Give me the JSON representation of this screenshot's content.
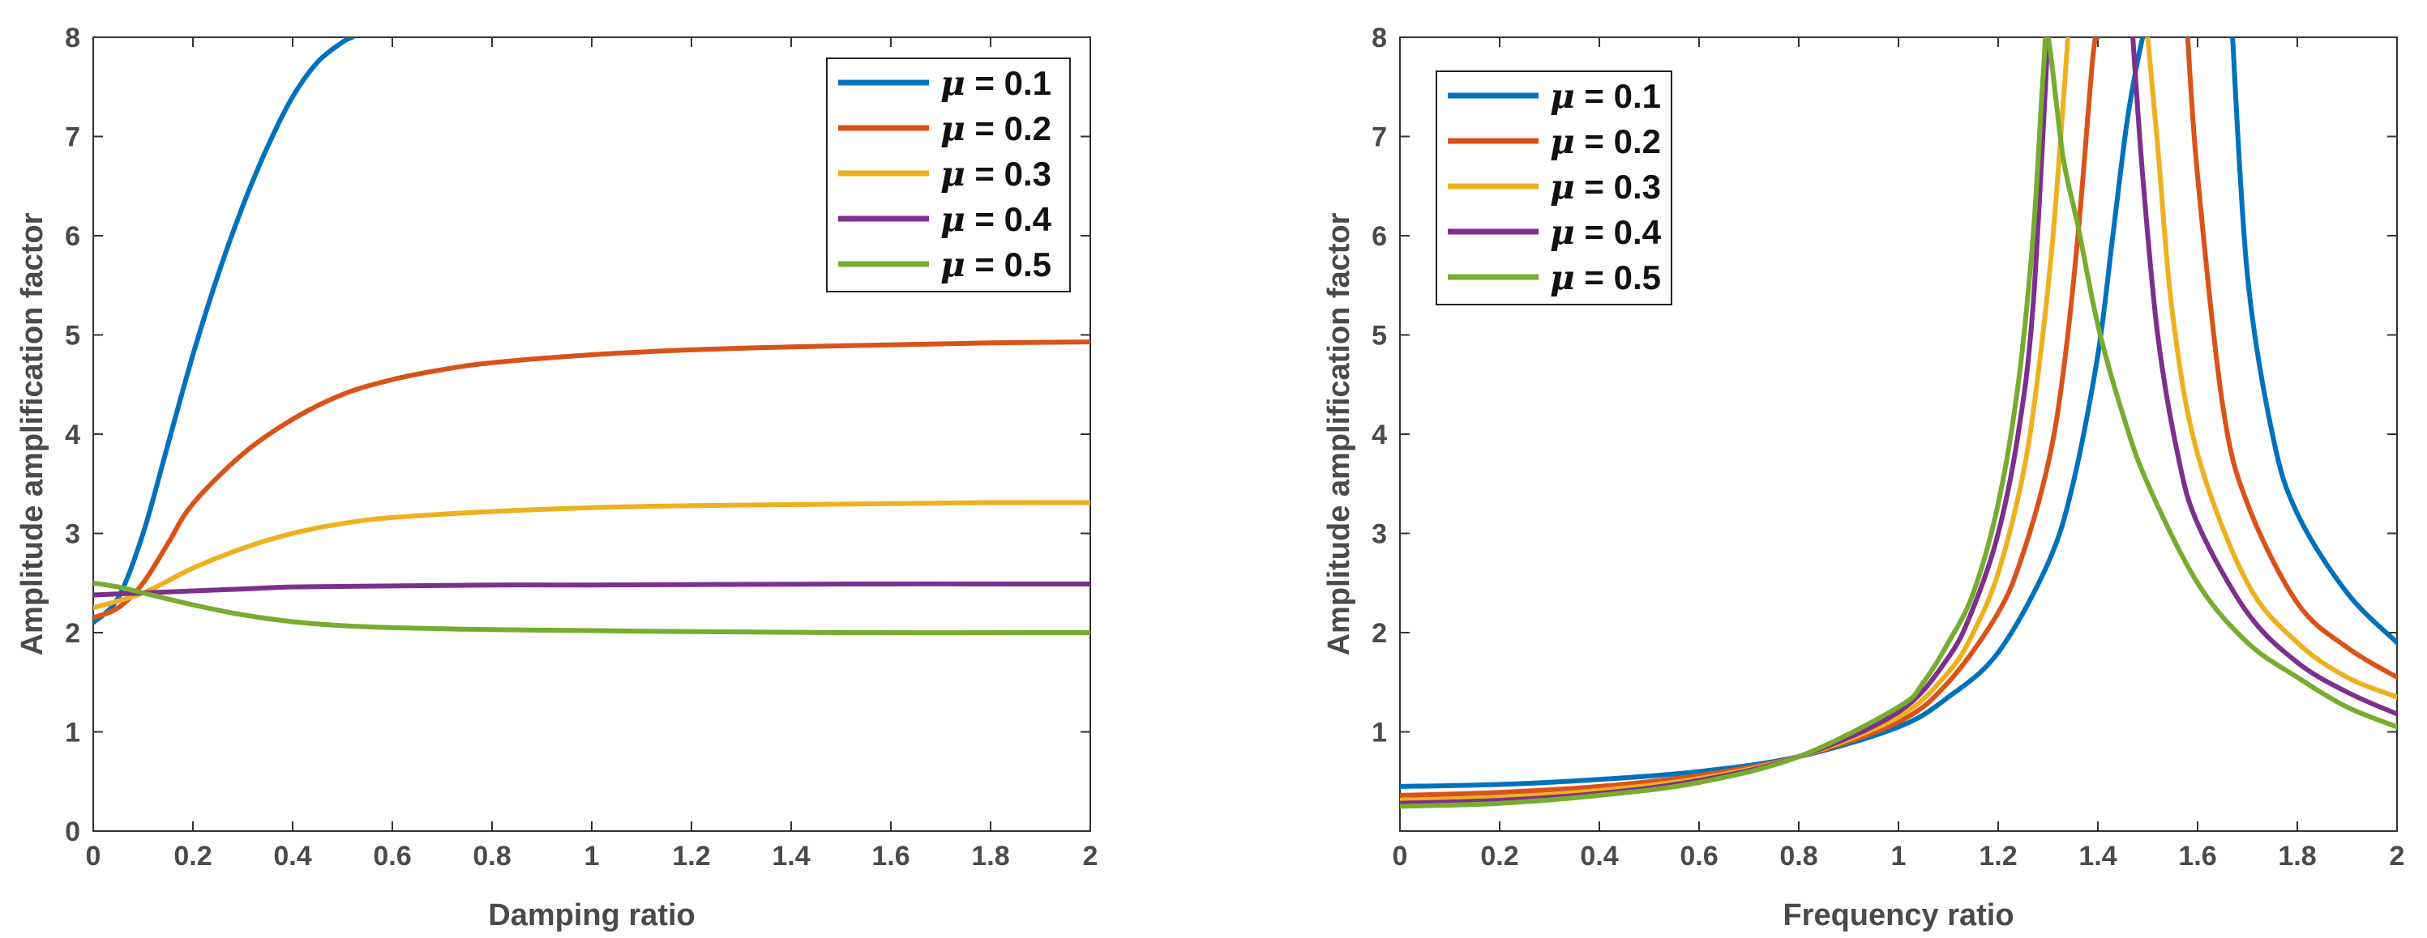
{
  "chart_data": [
    {
      "type": "line",
      "xlabel": "Damping ratio",
      "ylabel": "Amplitude amplification factor",
      "xlim": [
        0,
        2
      ],
      "ylim": [
        0,
        8
      ],
      "xticks": [
        0,
        0.2,
        0.4,
        0.6,
        0.8,
        1,
        1.2,
        1.4,
        1.6,
        1.8,
        2
      ],
      "xtick_labels": [
        "0",
        "0.2",
        "0.4",
        "0.6",
        "0.8",
        "1",
        "1.2",
        "1.4",
        "1.6",
        "1.8",
        "2"
      ],
      "yticks": [
        0,
        1,
        2,
        3,
        4,
        5,
        6,
        7,
        8
      ],
      "ytick_labels": [
        "0",
        "1",
        "2",
        "3",
        "4",
        "5",
        "6",
        "7",
        "8"
      ],
      "legend_position": "top-right",
      "series": [
        {
          "name": "μ = 0.1",
          "mu_value": "0.1",
          "color": "#0072BD",
          "x": [
            0,
            0.05,
            0.1,
            0.15,
            0.2,
            0.25,
            0.3,
            0.35,
            0.4,
            0.45,
            0.5,
            0.52
          ],
          "y": [
            2.1,
            2.35,
            3.0,
            3.9,
            4.8,
            5.6,
            6.3,
            6.9,
            7.4,
            7.75,
            7.95,
            8.0
          ]
        },
        {
          "name": "μ = 0.2",
          "mu_value": "0.2",
          "color": "#D95319",
          "x": [
            0,
            0.05,
            0.1,
            0.15,
            0.2,
            0.3,
            0.4,
            0.5,
            0.6,
            0.7,
            0.8,
            1.0,
            1.2,
            1.4,
            1.6,
            1.8,
            2.0
          ],
          "y": [
            2.15,
            2.25,
            2.5,
            2.9,
            3.3,
            3.8,
            4.15,
            4.4,
            4.55,
            4.65,
            4.72,
            4.8,
            4.85,
            4.88,
            4.9,
            4.92,
            4.93
          ]
        },
        {
          "name": "μ = 0.3",
          "mu_value": "0.3",
          "color": "#EDB120",
          "x": [
            0,
            0.1,
            0.2,
            0.3,
            0.4,
            0.5,
            0.6,
            0.8,
            1.0,
            1.2,
            1.4,
            1.6,
            1.8,
            2.0
          ],
          "y": [
            2.25,
            2.4,
            2.65,
            2.85,
            3.0,
            3.1,
            3.16,
            3.22,
            3.26,
            3.28,
            3.29,
            3.3,
            3.31,
            3.31
          ]
        },
        {
          "name": "μ = 0.4",
          "mu_value": "0.4",
          "color": "#7E2F8E",
          "x": [
            0,
            0.1,
            0.2,
            0.3,
            0.4,
            0.6,
            0.8,
            1.0,
            1.5,
            2.0
          ],
          "y": [
            2.38,
            2.4,
            2.42,
            2.44,
            2.46,
            2.47,
            2.48,
            2.48,
            2.49,
            2.49
          ]
        },
        {
          "name": "μ = 0.5",
          "mu_value": "0.5",
          "color": "#77AC30",
          "x": [
            0,
            0.05,
            0.1,
            0.2,
            0.3,
            0.4,
            0.5,
            0.6,
            0.8,
            1.0,
            1.2,
            1.5,
            2.0
          ],
          "y": [
            2.5,
            2.46,
            2.4,
            2.28,
            2.18,
            2.11,
            2.07,
            2.05,
            2.03,
            2.02,
            2.01,
            2.0,
            2.0
          ]
        }
      ]
    },
    {
      "type": "line",
      "xlabel": "Frequency ratio",
      "ylabel": "Amplitude amplification factor",
      "xlim": [
        0,
        2
      ],
      "ylim": [
        0,
        8
      ],
      "xticks": [
        0,
        0.2,
        0.4,
        0.6,
        0.8,
        1,
        1.2,
        1.4,
        1.6,
        1.8,
        2
      ],
      "xtick_labels": [
        "0",
        "0.2",
        "0.4",
        "0.6",
        "0.8",
        "1",
        "1.2",
        "1.4",
        "1.6",
        "1.8",
        "2"
      ],
      "yticks": [
        1,
        2,
        3,
        4,
        5,
        6,
        7,
        8
      ],
      "ytick_labels": [
        "1",
        "2",
        "3",
        "4",
        "5",
        "6",
        "7",
        "8"
      ],
      "legend_position": "top-left",
      "series": [
        {
          "name": "μ = 0.1",
          "mu_value": "0.1",
          "color": "#0072BD",
          "x": [
            0,
            0.2,
            0.4,
            0.6,
            0.8,
            1.0,
            1.1,
            1.2,
            1.3,
            1.35,
            1.4,
            1.43,
            1.46,
            1.49,
            1.5,
            null,
            1.67,
            1.7,
            1.75,
            1.8,
            1.9,
            2.0
          ],
          "y": [
            0.45,
            0.47,
            0.52,
            0.6,
            0.75,
            1.05,
            1.35,
            1.8,
            2.7,
            3.5,
            4.8,
            6.0,
            7.2,
            8.0,
            8.0,
            null,
            8.0,
            5.6,
            4.0,
            3.2,
            2.4,
            1.9
          ]
        },
        {
          "name": "μ = 0.2",
          "mu_value": "0.2",
          "color": "#D95319",
          "x": [
            0,
            0.2,
            0.4,
            0.6,
            0.8,
            1.0,
            1.1,
            1.2,
            1.25,
            1.3,
            1.33,
            1.36,
            1.39,
            1.4,
            null,
            1.58,
            1.6,
            1.65,
            1.7,
            1.8,
            1.9,
            2.0
          ],
          "y": [
            0.36,
            0.39,
            0.45,
            0.56,
            0.75,
            1.1,
            1.5,
            2.2,
            2.8,
            3.7,
            4.6,
            6.0,
            7.8,
            8.0,
            null,
            8.0,
            6.6,
            4.3,
            3.3,
            2.3,
            1.85,
            1.55
          ]
        },
        {
          "name": "μ = 0.3",
          "mu_value": "0.3",
          "color": "#EDB120",
          "x": [
            0,
            0.2,
            0.4,
            0.6,
            0.8,
            1.0,
            1.1,
            1.15,
            1.2,
            1.25,
            1.28,
            1.31,
            1.34,
            null,
            1.5,
            1.52,
            1.55,
            1.6,
            1.7,
            1.8,
            1.9,
            2.0
          ],
          "y": [
            0.31,
            0.34,
            0.41,
            0.53,
            0.75,
            1.15,
            1.6,
            2.0,
            2.6,
            3.6,
            4.6,
            6.0,
            8.0,
            null,
            8.0,
            6.9,
            5.2,
            3.8,
            2.5,
            1.9,
            1.55,
            1.35
          ]
        },
        {
          "name": "μ = 0.4",
          "mu_value": "0.4",
          "color": "#7E2F8E",
          "x": [
            0,
            0.2,
            0.4,
            0.6,
            0.8,
            1.0,
            1.1,
            1.15,
            1.2,
            1.24,
            1.27,
            1.3,
            null,
            1.47,
            1.49,
            1.52,
            1.56,
            1.6,
            1.7,
            1.8,
            1.9,
            2.0
          ],
          "y": [
            0.28,
            0.31,
            0.38,
            0.51,
            0.75,
            1.2,
            1.75,
            2.25,
            3.0,
            4.0,
            5.3,
            8.0,
            null,
            8.0,
            6.6,
            5.0,
            3.8,
            3.1,
            2.2,
            1.7,
            1.4,
            1.18
          ]
        },
        {
          "name": "μ = 0.5",
          "mu_value": "0.5",
          "color": "#77AC30",
          "x": [
            0,
            0.2,
            0.4,
            0.6,
            0.8,
            1.0,
            1.05,
            1.1,
            1.15,
            1.2,
            1.24,
            1.27,
            1.29,
            1.3,
            1.33,
            1.36,
            1.4,
            1.45,
            1.5,
            1.6,
            1.7,
            1.8,
            1.9,
            2.0
          ],
          "y": [
            0.25,
            0.28,
            0.36,
            0.49,
            0.75,
            1.25,
            1.5,
            1.9,
            2.4,
            3.3,
            4.5,
            6.0,
            7.6,
            8.0,
            6.8,
            6.1,
            5.1,
            4.2,
            3.5,
            2.5,
            1.9,
            1.55,
            1.25,
            1.05
          ]
        }
      ]
    }
  ]
}
